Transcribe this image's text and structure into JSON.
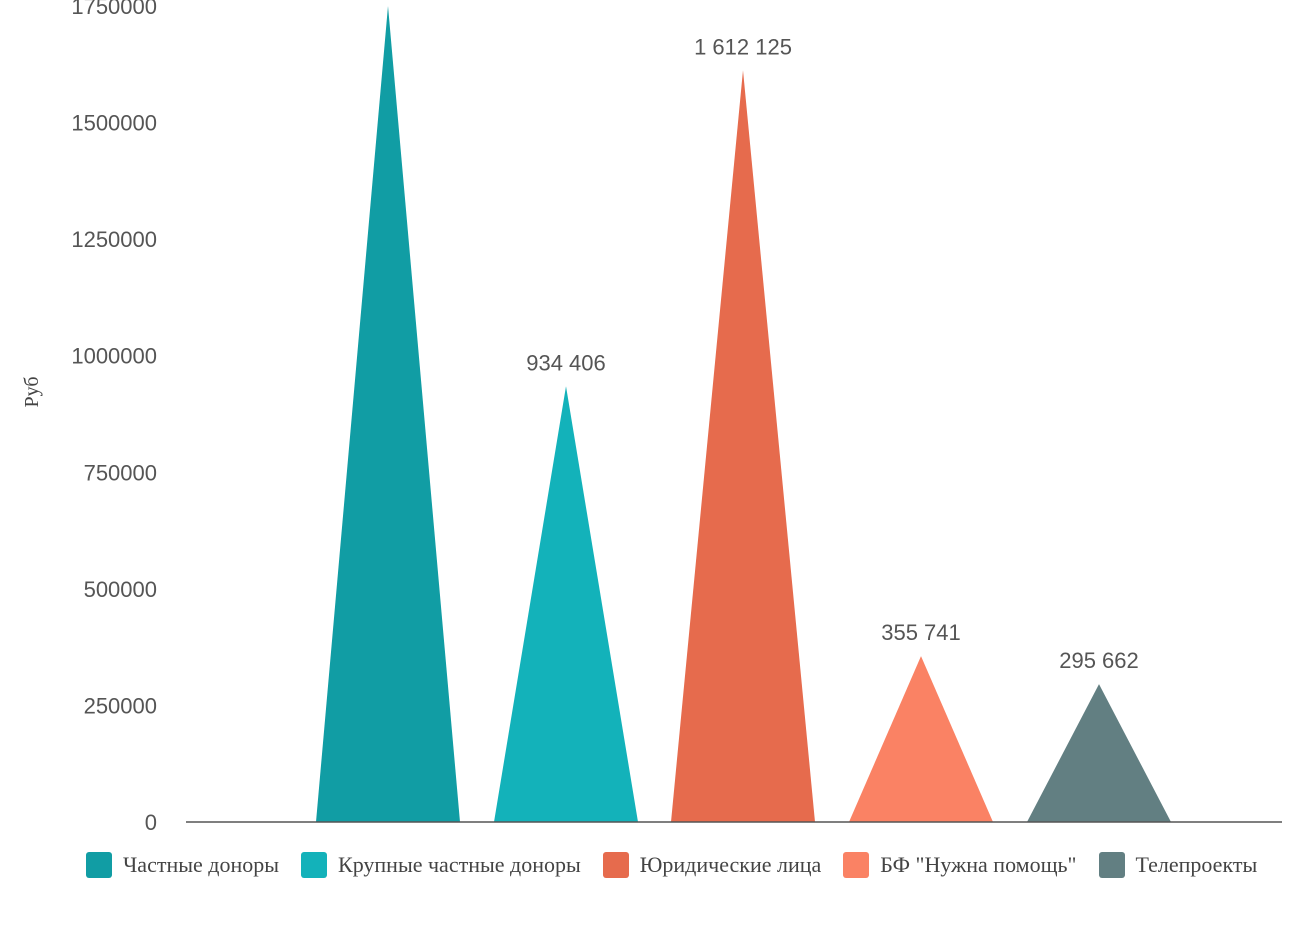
{
  "chart_data": {
    "type": "bar",
    "bar_shape": "triangle",
    "ylabel": "Руб",
    "ylim": [
      0,
      1750000
    ],
    "yticks": [
      "0",
      "250000",
      "500000",
      "750000",
      "1000000",
      "1250000",
      "1500000",
      "1750000"
    ],
    "grid": false,
    "legend_position": "bottom",
    "series": [
      {
        "name": "Частные доноры",
        "value": 1750000,
        "label": "",
        "color": "#119DA4"
      },
      {
        "name": "Крупные частные доноры",
        "value": 934406,
        "label": "934 406",
        "color": "#13B2BA"
      },
      {
        "name": "Юридические лица",
        "value": 1612125,
        "label": "1 612 125",
        "color": "#E66B4D"
      },
      {
        "name": "БФ \"Нужна помощь\"",
        "value": 355741,
        "label": "355 741",
        "color": "#FA8264"
      },
      {
        "name": "Телепроекты",
        "value": 295662,
        "label": "295 662",
        "color": "#627F82"
      }
    ]
  }
}
